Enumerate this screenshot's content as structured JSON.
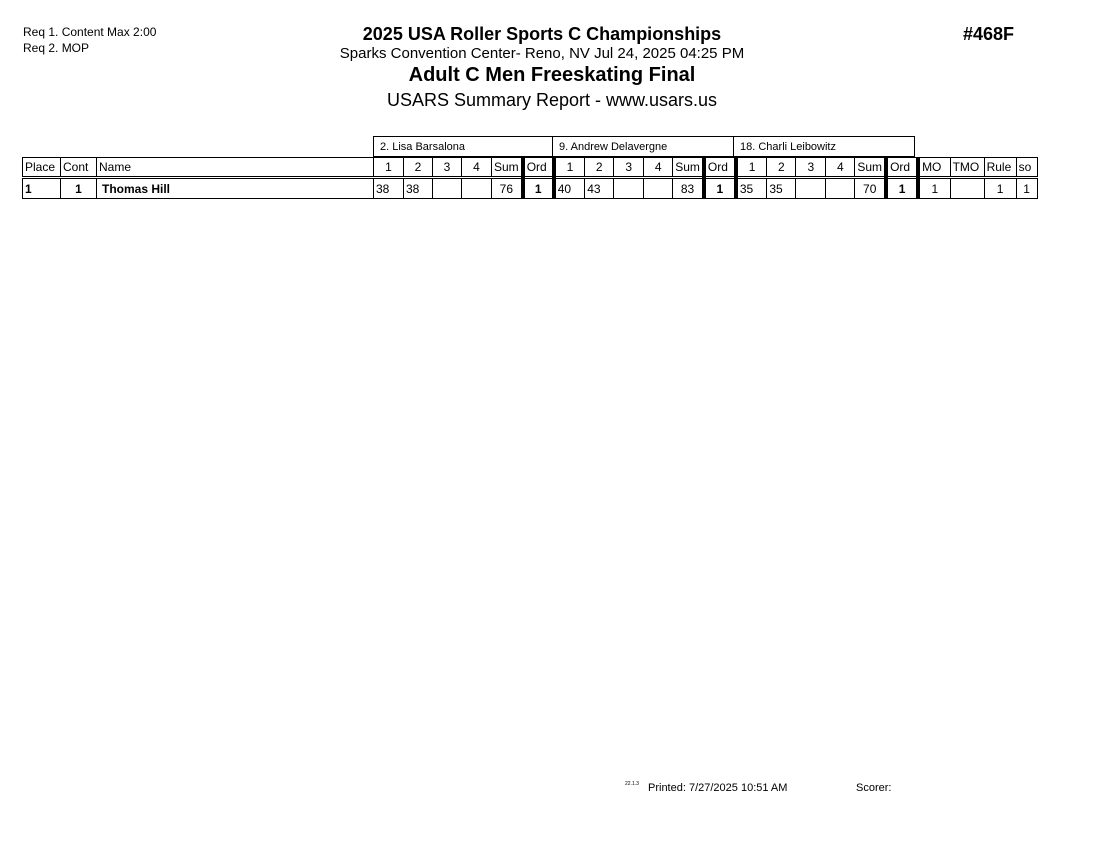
{
  "requirements": [
    "Req  1.  Content  Max 2:00",
    "Req  2.  MOP"
  ],
  "header": {
    "title": "2025 USA Roller Sports C Championships",
    "venue": "Sparks Convention Center- Reno, NV  Jul 24, 2025  04:25 PM",
    "event": "Adult C Men Freeskating Final",
    "report": "USARS Summary Report - www.usars.us",
    "event_number": "#468F"
  },
  "judges": [
    "2.  Lisa Barsalona",
    "9.  Andrew Delavergne",
    "18.  Charli Leibowitz"
  ],
  "columns": {
    "place": "Place",
    "cont": "Cont",
    "name": "Name",
    "j": [
      "1",
      "2",
      "3",
      "4",
      "Sum",
      "Ord"
    ],
    "mo": "MO",
    "tmo": "TMO",
    "rule": "Rule",
    "so": "so"
  },
  "rows": [
    {
      "place": "1",
      "cont": "1",
      "name": "Thomas Hill",
      "j": [
        [
          "38",
          "38",
          "",
          "",
          "76",
          "1"
        ],
        [
          "40",
          "43",
          "",
          "",
          "83",
          "1"
        ],
        [
          "35",
          "35",
          "",
          "",
          "70",
          "1"
        ]
      ],
      "mo": "1",
      "tmo": "",
      "rule": "1",
      "so": "1"
    }
  ],
  "footer": {
    "version": "22.1.3",
    "printed": "Printed:  7/27/2025  10:51 AM",
    "scorer": "Scorer:"
  }
}
